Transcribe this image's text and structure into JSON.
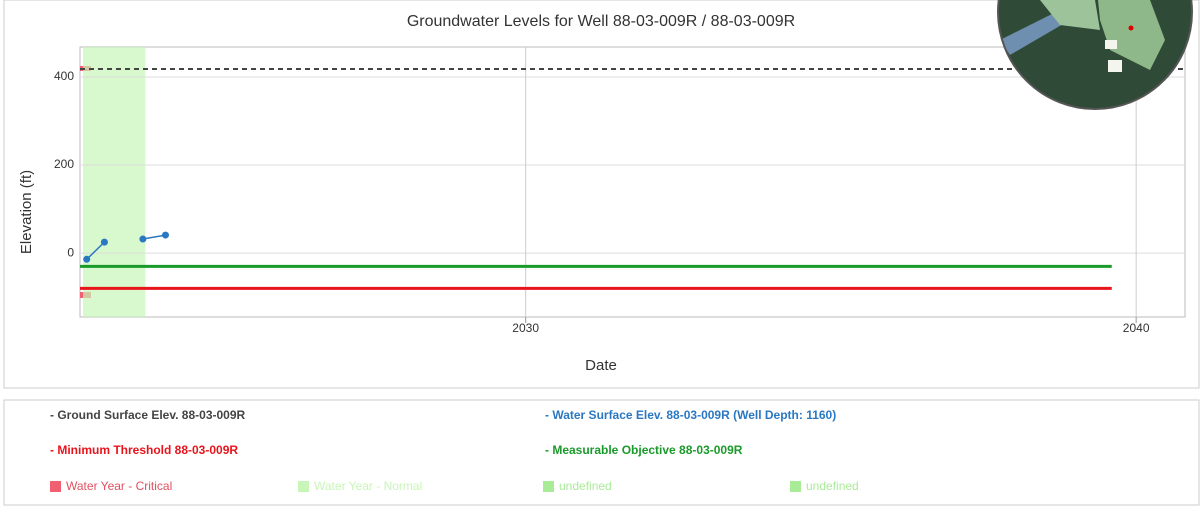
{
  "chart_data": {
    "type": "line",
    "title": "Groundwater Levels for Well 88-03-009R / 88-03-009R",
    "x_label": "Date",
    "y_label": "Elevation (ft)",
    "xlim": [
      2022.7,
      2040.8
    ],
    "ylim": [
      -145,
      468
    ],
    "xticks": [
      2030,
      2040
    ],
    "yticks": [
      0,
      200,
      400
    ],
    "grid": true,
    "series": [
      {
        "name": "- Ground Surface Elev. 88-03-009R",
        "color": "#444444",
        "dashed": true,
        "x": [
          2022.7,
          2040.8
        ],
        "values": [
          418,
          418
        ]
      },
      {
        "name": "- Water Surface Elev. 88-03-009R  (Well Depth: 1160)",
        "color": "#2b78c2",
        "markers": true,
        "x": [
          2022.81,
          2023.1,
          null,
          2023.73,
          2024.1
        ],
        "values": [
          -14,
          25,
          null,
          32,
          41
        ]
      },
      {
        "name": "- Minimum Threshold 88-03-009R",
        "color": "#e8141c",
        "x": [
          2022.7,
          2039.6
        ],
        "values": [
          -80,
          -80
        ]
      },
      {
        "name": "- Measurable Objective 88-03-009R",
        "color": "#1a9a2a",
        "x": [
          2022.7,
          2039.6
        ],
        "values": [
          -30,
          -30
        ]
      }
    ],
    "bands": [
      {
        "name": "Water Year - Critical",
        "color": "#f06070",
        "x": [
          2022.7,
          2022.88
        ]
      },
      {
        "name": "Water Year - Normal",
        "color": "#c8f5b8",
        "x": [
          2022.75,
          2023.77
        ]
      },
      {
        "name": "undefined",
        "color": "#a8ec98"
      },
      {
        "name": "undefined",
        "color": "#a8ec98"
      }
    ]
  }
}
